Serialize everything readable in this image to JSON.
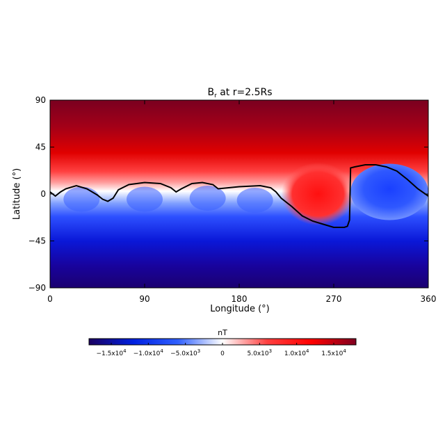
{
  "chart_data": {
    "type": "heatmap",
    "title_main": "B",
    "title_sub": "r",
    "title_rest": " at r=2.5Rs",
    "xlabel": "Longitude (°)",
    "ylabel": "Latitude (°)",
    "xlim": [
      0,
      360
    ],
    "ylim": [
      -90,
      90
    ],
    "xticks": [
      0,
      90,
      180,
      270,
      360
    ],
    "yticks": [
      90,
      45,
      0,
      -45,
      -90
    ],
    "colorbar": {
      "unit": "nT",
      "range": [
        -18000,
        18000
      ],
      "ticks": [
        {
          "value": -15000,
          "mantissa": "−1.5x10",
          "exp": "4"
        },
        {
          "value": -10000,
          "mantissa": "−1.0x10",
          "exp": "4"
        },
        {
          "value": -5000,
          "mantissa": "−5.0x10",
          "exp": "3"
        },
        {
          "value": 0,
          "mantissa": "0",
          "exp": ""
        },
        {
          "value": 5000,
          "mantissa": "5.0x10",
          "exp": "3"
        },
        {
          "value": 10000,
          "mantissa": "1.0x10",
          "exp": "4"
        },
        {
          "value": 15000,
          "mantissa": "1.5x10",
          "exp": "4"
        }
      ],
      "colors": [
        "#1a0060",
        "#0020e0",
        "#3060ff",
        "#ffffff",
        "#ff4040",
        "#ff0000",
        "#800020"
      ]
    },
    "neutral_line": {
      "lon": [
        0,
        5,
        10,
        15,
        25,
        35,
        45,
        50,
        55,
        60,
        65,
        75,
        90,
        105,
        115,
        120,
        125,
        135,
        145,
        155,
        160,
        170,
        180,
        200,
        210,
        215,
        220,
        230,
        240,
        250,
        260,
        270,
        280,
        283,
        285,
        286,
        290,
        295,
        300,
        310,
        320,
        330,
        340,
        350,
        360
      ],
      "lat": [
        2,
        -2,
        2,
        5,
        8,
        5,
        -1,
        -5,
        -7,
        -4,
        4,
        9,
        11,
        10,
        6,
        2,
        5,
        10,
        11,
        9,
        5,
        6,
        7,
        8,
        6,
        2,
        -4,
        -12,
        -21,
        -26,
        -29,
        -32,
        -32,
        -31,
        -25,
        25,
        26,
        27,
        28,
        28,
        26,
        22,
        14,
        5,
        -2
      ]
    }
  }
}
